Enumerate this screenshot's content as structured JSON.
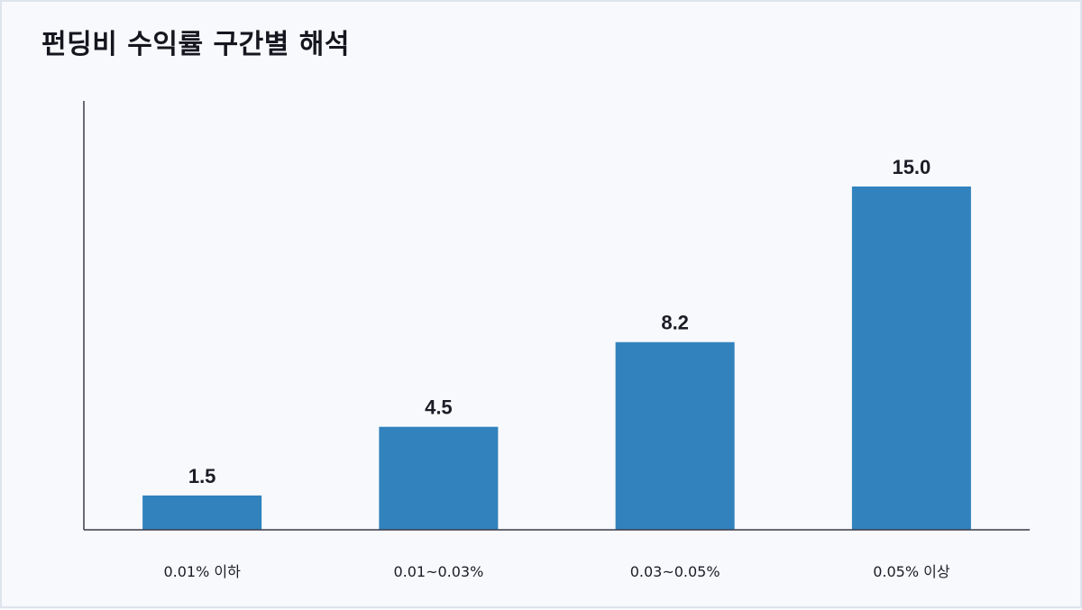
{
  "title": "펀딩비 수익률 구간별 해석",
  "colors": {
    "bar": "#3182bd",
    "axis": "#3a3a4a",
    "background": "#f7f9fc"
  },
  "chart_data": {
    "type": "bar",
    "title": "펀딩비 수익률 구간별 해석",
    "categories": [
      "0.01% 이하",
      "0.01~0.03%",
      "0.03~0.05%",
      "0.05% 이상"
    ],
    "values": [
      1.5,
      4.5,
      8.2,
      15.0
    ],
    "value_labels": [
      "1.5",
      "4.5",
      "8.2",
      "15.0"
    ],
    "xlabel": "",
    "ylabel": "",
    "ylim": [
      0,
      18
    ],
    "grid": false,
    "legend": "none"
  }
}
